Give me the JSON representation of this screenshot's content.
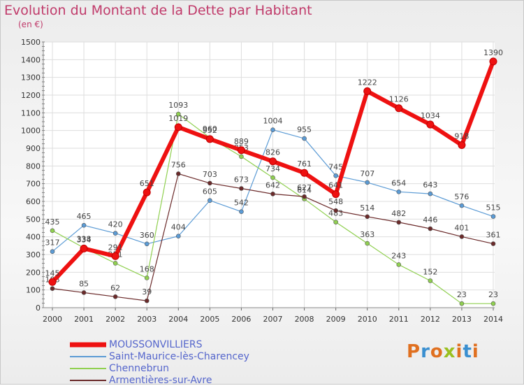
{
  "title": "Evolution du Montant de la Dette par Habitant",
  "unit": "(en €)",
  "logo": {
    "text": "Proxiti",
    "colors": [
      "#e07020",
      "#3a8fd0",
      "#e07020",
      "#9ac020",
      "#e07020",
      "#3a8fd0",
      "#e07020"
    ]
  },
  "chart_data": {
    "type": "line",
    "title": "Evolution du Montant de la Dette par Habitant",
    "ylabel": "(en €)",
    "x": [
      "2000",
      "2001",
      "2002",
      "2003",
      "2004",
      "2005",
      "2006",
      "2007",
      "2008",
      "2009",
      "2010",
      "2011",
      "2012",
      "2013",
      "2014"
    ],
    "ylim": [
      0,
      1500
    ],
    "yticks": [
      0,
      100,
      200,
      300,
      400,
      500,
      600,
      700,
      800,
      900,
      1000,
      1100,
      1200,
      1300,
      1400,
      1500
    ],
    "grid": true,
    "legend_position": "bottom-left",
    "series": [
      {
        "name": "MOUSSONVILLIERS",
        "color": "#ee1111",
        "width": 6,
        "values": [
          145,
          334,
          291,
          651,
          1019,
          952,
          889,
          826,
          761,
          641,
          1222,
          1126,
          1034,
          918,
          1390
        ]
      },
      {
        "name": "Saint-Maurice-lès-Charencey",
        "color": "#5b9bd5",
        "width": 1.2,
        "values": [
          317,
          465,
          420,
          360,
          404,
          605,
          542,
          1004,
          955,
          745,
          707,
          654,
          643,
          576,
          515
        ]
      },
      {
        "name": "Chennebrun",
        "color": "#90d050",
        "width": 1.2,
        "values": [
          435,
          338,
          251,
          168,
          1093,
          960,
          853,
          734,
          614,
          483,
          363,
          243,
          152,
          23,
          23
        ]
      },
      {
        "name": "Armentières-sur-Avre",
        "color": "#6b2a2a",
        "width": 1.2,
        "values": [
          108,
          85,
          62,
          39,
          756,
          703,
          673,
          642,
          627,
          548,
          514,
          482,
          446,
          401,
          361
        ]
      }
    ]
  }
}
